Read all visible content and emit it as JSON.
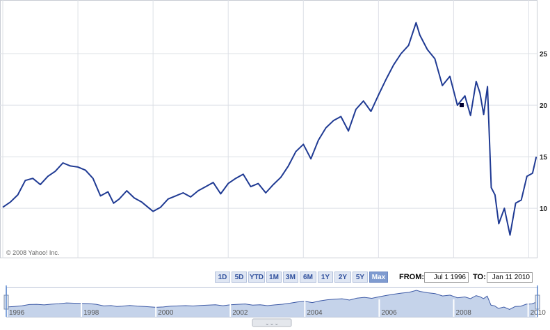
{
  "copyright": "© 2008 Yahoo! Inc.",
  "range_buttons": [
    "1D",
    "5D",
    "YTD",
    "1M",
    "3M",
    "6M",
    "1Y",
    "2Y",
    "5Y",
    "Max"
  ],
  "active_range": "Max",
  "from_label": "FROM:",
  "from_value": "Jul 1 1996",
  "to_label": "TO:",
  "to_value": "Jan 11 2010",
  "navigator": {
    "labels": [
      "1996",
      "1998",
      "2000",
      "2002",
      "2004",
      "2006",
      "2008",
      "2010"
    ],
    "grip": "⌄⌄⌄"
  },
  "colors": {
    "line": "#1f3a93",
    "grid": "#dde0e6",
    "nav_fill": "#c5d3ea",
    "nav_line": "#3d5aa6",
    "button_active": "#7f9bd0"
  },
  "chart_data": {
    "type": "line",
    "xlabel": "",
    "ylabel": "",
    "x_ticks": [
      "1996",
      "1998",
      "2000",
      "2002",
      "2004",
      "2006",
      "2008",
      "2010"
    ],
    "y_ticks": [
      10,
      15,
      20,
      25
    ],
    "xlim": [
      1996.0,
      2010.25
    ],
    "ylim": [
      5.15,
      30.2
    ],
    "grid": true,
    "series": [
      {
        "x": [
          1996.0,
          1996.2,
          1996.4,
          1996.6,
          1996.8,
          1997.0,
          1997.2,
          1997.4,
          1997.6,
          1997.8,
          1998.0,
          1998.2,
          1998.4,
          1998.6,
          1998.8,
          1998.95,
          1999.1,
          1999.3,
          1999.5,
          1999.7,
          1999.9,
          2000.0,
          2000.2,
          2000.4,
          2000.6,
          2000.8,
          2001.0,
          2001.2,
          2001.4,
          2001.6,
          2001.8,
          2002.0,
          2002.2,
          2002.4,
          2002.6,
          2002.8,
          2003.0,
          2003.2,
          2003.4,
          2003.6,
          2003.8,
          2004.0,
          2004.2,
          2004.4,
          2004.6,
          2004.8,
          2005.0,
          2005.2,
          2005.4,
          2005.6,
          2005.8,
          2006.0,
          2006.2,
          2006.4,
          2006.6,
          2006.8,
          2007.0,
          2007.1,
          2007.3,
          2007.5,
          2007.7,
          2007.9,
          2008.1,
          2008.3,
          2008.45,
          2008.6,
          2008.7,
          2008.8,
          2008.9,
          2009.0,
          2009.1,
          2009.2,
          2009.35,
          2009.5,
          2009.65,
          2009.8,
          2009.95,
          2010.1,
          2010.2
        ],
        "y": [
          10.1,
          10.6,
          11.3,
          12.7,
          12.9,
          12.3,
          13.1,
          13.6,
          14.4,
          14.1,
          14.0,
          13.7,
          12.9,
          11.2,
          11.6,
          10.5,
          10.9,
          11.7,
          11.0,
          10.6,
          10.0,
          9.7,
          10.1,
          10.9,
          11.2,
          11.5,
          11.1,
          11.7,
          12.1,
          12.5,
          11.4,
          12.4,
          12.9,
          13.3,
          12.1,
          12.4,
          11.5,
          12.3,
          13.0,
          14.1,
          15.5,
          16.2,
          14.8,
          16.6,
          17.8,
          18.5,
          18.9,
          17.5,
          19.6,
          20.4,
          19.4,
          21.0,
          22.5,
          23.9,
          25.0,
          25.8,
          28.0,
          26.8,
          25.4,
          24.5,
          21.9,
          22.8,
          20.0,
          20.9,
          19.0,
          22.3,
          21.2,
          19.1,
          21.8,
          12.0,
          11.3,
          8.5,
          10.0,
          7.4,
          10.5,
          10.8,
          13.1,
          13.4,
          15.0
        ]
      }
    ]
  }
}
